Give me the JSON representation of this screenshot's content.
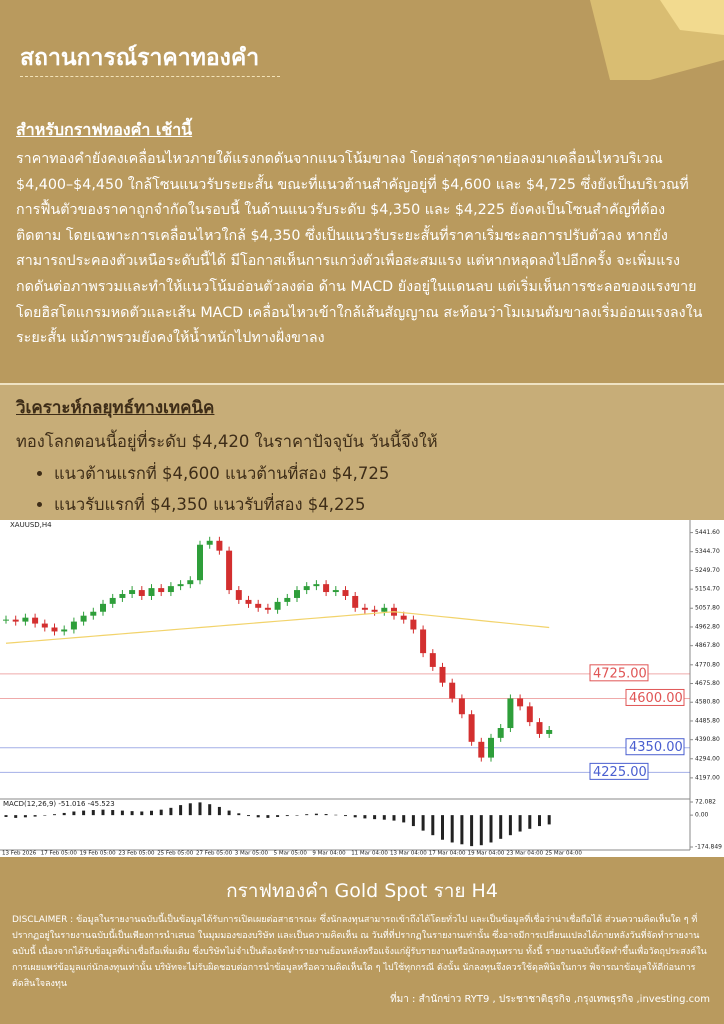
{
  "header": {
    "title": "สถานการณ์ราคาทองคำ"
  },
  "section1": {
    "title": "สำหรับกราฟทองคำ เช้านี้",
    "body": "ราคาทองคำยังคงเคลื่อนไหวภายใต้แรงกดดันจากแนวโน้มขาลง โดยล่าสุดราคาย่อลงมาเคลื่อนไหวบริเวณ $4,400–$4,450 ใกล้โซนแนวรับระยะสั้น ขณะที่แนวต้านสำคัญอยู่ที่ $4,600 และ $4,725 ซึ่งยังเป็นบริเวณที่การฟื้นตัวของราคาถูกจำกัดในรอบนี้ ในด้านแนวรับระดับ $4,350 และ $4,225 ยังคงเป็นโซนสำคัญที่ต้องติดตาม โดยเฉพาะการเคลื่อนไหวใกล้ $4,350 ซึ่งเป็นแนวรับระยะสั้นที่ราคาเริ่มชะลอการปรับตัวลง หากยังสามารถประคองตัวเหนือระดับนี้ได้ มีโอกาสเห็นการแกว่งตัวเพื่อสะสมแรง แต่หากหลุดลงไปอีกครั้ง จะเพิ่มแรงกดดันต่อภาพรวมและทำให้แนวโน้มอ่อนตัวลงต่อ ด้าน MACD ยังอยู่ในแดนลบ แต่เริ่มเห็นการชะลอของแรงขาย โดยฮิสโตแกรมหดตัวและเส้น MACD เคลื่อนไหวเข้าใกล้เส้นสัญญาณ สะท้อนว่าโมเมนตัมขาลงเริ่มอ่อนแรงลงในระยะสั้น แม้ภาพรวมยังคงให้น้ำหนักไปทางฝั่งขาลง"
  },
  "section2": {
    "title": "วิเคราะห์กลยุทธ์ทางเทคนิค",
    "intro": "ทองโลกตอนนี้อยู่ที่ระดับ $4,420 ในราคาปัจจุบัน วันนี้จึงให้",
    "bullets": [
      "แนวต้านแรกที่ $4,600 แนวต้านที่สอง $4,725",
      "แนวรับแรกที่ $4,350 แนวรับที่สอง $4,225"
    ]
  },
  "chart_data": {
    "type": "candlestick",
    "title": "XAUUSD,H4",
    "categories": [
      "13 Feb 2026",
      null,
      null,
      null,
      "17 Feb 05:00",
      null,
      null,
      null,
      "19 Feb 05:00",
      null,
      null,
      null,
      "23 Feb 05:00",
      null,
      null,
      null,
      "25 Feb 05:00",
      null,
      null,
      null,
      "27 Feb 05:00",
      null,
      null,
      null,
      "3 Mar 05:00",
      null,
      null,
      null,
      "5 Mar 05:00",
      null,
      null,
      null,
      "9 Mar 04:00",
      null,
      null,
      null,
      "11 Mar 04:00",
      null,
      null,
      null,
      "13 Mar 04:00",
      null,
      null,
      null,
      "17 Mar 04:00",
      null,
      null,
      null,
      "19 Mar 04:00",
      null,
      null,
      null,
      "23 Mar 04:00",
      null,
      null,
      null,
      "25 Mar 04:00"
    ],
    "series": [
      {
        "name": "Close",
        "colors": {
          "up": "#2e9e3a",
          "down": "#d32f2f"
        },
        "values": [
          5000,
          4990,
          5010,
          4980,
          4960,
          4940,
          4950,
          4990,
          5020,
          5040,
          5080,
          5110,
          5130,
          5150,
          5120,
          5160,
          5140,
          5170,
          5180,
          5200,
          5380,
          5400,
          5350,
          5150,
          5100,
          5080,
          5060,
          5050,
          5090,
          5110,
          5150,
          5170,
          5180,
          5140,
          5150,
          5120,
          5060,
          5050,
          5040,
          5060,
          5020,
          5000,
          4950,
          4830,
          4760,
          4680,
          4600,
          4520,
          4380,
          4300,
          4400,
          4450,
          4600,
          4560,
          4480,
          4420,
          4440
        ]
      },
      {
        "name": "MA",
        "color": "#f2d36b",
        "values": [
          4880,
          4884,
          4888,
          4892,
          4896,
          4900,
          4904,
          4908,
          4912,
          4916,
          4920,
          4924,
          4928,
          4932,
          4936,
          4940,
          4944,
          4948,
          4952,
          4956,
          4960,
          4964,
          4968,
          4972,
          4976,
          4980,
          4984,
          4988,
          4992,
          4996,
          5000,
          5004,
          5008,
          5012,
          5016,
          5020,
          5024,
          5028,
          5032,
          5036,
          5040,
          5035,
          5030,
          5025,
          5020,
          5015,
          5010,
          5005,
          5000,
          4995,
          4990,
          4985,
          4980,
          4975,
          4970,
          4965,
          4960
        ]
      }
    ],
    "ylim": [
      4100,
      5470
    ],
    "yticks": [
      {
        "value": 5441.6,
        "label": "5441.60"
      },
      {
        "value": 5344.7,
        "label": "5344.70"
      },
      {
        "value": 5249.7,
        "label": "5249.70"
      },
      {
        "value": 5154.7,
        "label": "5154.70"
      },
      {
        "value": 5057.8,
        "label": "5057.80"
      },
      {
        "value": 4962.8,
        "label": "4962.80"
      },
      {
        "value": 4867.8,
        "label": "4867.80"
      },
      {
        "value": 4770.8,
        "label": "4770.80"
      },
      {
        "value": 4675.8,
        "label": "4675.80"
      },
      {
        "value": 4580.8,
        "label": "4580.80"
      },
      {
        "value": 4485.8,
        "label": "4485.80"
      },
      {
        "value": 4390.8,
        "label": "4390.80"
      },
      {
        "value": 4294,
        "label": "4294.00"
      },
      {
        "value": 4197,
        "label": "4197.00"
      }
    ],
    "levels": [
      {
        "value": 4725,
        "label": "4725.00",
        "color": "#e05555"
      },
      {
        "value": 4600,
        "label": "4600.00",
        "color": "#e05555"
      },
      {
        "value": 4350,
        "label": "4350.00",
        "color": "#4a5fd0"
      },
      {
        "value": 4225,
        "label": "4225.00",
        "color": "#4a5fd0"
      }
    ],
    "macd": {
      "label": "MACD(12,26,9) -51.016 -45.523",
      "color": "#222222",
      "ylim": [
        -174.849,
        72.082
      ],
      "yticks": [
        {
          "value": 72.082,
          "label": "72.082"
        },
        {
          "value": 0,
          "label": "0.00"
        },
        {
          "value": -174.849,
          "label": "-174.849"
        }
      ],
      "values": [
        -10,
        -15,
        -12,
        -8,
        -2,
        5,
        12,
        20,
        25,
        28,
        30,
        28,
        25,
        22,
        20,
        24,
        30,
        40,
        55,
        65,
        70,
        60,
        45,
        25,
        10,
        -5,
        -12,
        -15,
        -10,
        -5,
        0,
        5,
        8,
        6,
        2,
        -5,
        -12,
        -18,
        -22,
        -25,
        -30,
        -40,
        -60,
        -85,
        -110,
        -135,
        -150,
        -160,
        -170,
        -165,
        -150,
        -130,
        -110,
        -90,
        -75,
        -60,
        -51
      ]
    }
  },
  "caption": "กราฟทองคำ Gold Spot ราย H4",
  "disclaimer": "DISCLAIMER : ข้อมูลในรายงานฉบับนี้เป็นข้อมูลได้รับการเปิดเผยต่อสาธารณะ ซึ่งนักลงทุนสามารถเข้าถึงได้โดยทั่วไป และเป็นข้อมูลที่เชื่อว่าน่าเชื่อถือได้ ส่วนความคิดเห็นใด ๆ ที่ปรากฏอยู่ในรายงานฉบับนี้เป็นเพียงการนำเสนอ ในมุมมองของบริษัท และเป็นความคิดเห็น ณ วันที่ที่ปรากฏในรายงานเท่านั้น ซึ่งอาจมีการเปลี่ยนแปลงได้ภายหลังวันที่จัดทำรายงานฉบับนี้ เนื่องจากได้รับข้อมูลที่น่าเชื่อถือเพิ่มเติม ซึ่งบริษัทไม่จำเป็นต้องจัดทำรายงานย้อนหลังหรือแจ้งแก่ผู้รับรายงานหรือนักลงทุนทราบ ทั้งนี้ รายงานฉบับนี้จัดทำขึ้นเพื่อวัตถุประสงค์ในการเผยแพร่ข้อมูลแก่นักลงทุนเท่านั้น บริษัทจะไม่รับผิดชอบต่อการนำข้อมูลหรือความคิดเห็นใด ๆ ไปใช้ทุกกรณี ดังนั้น นักลงทุนจึงควรใช้ดุลพินิจในการ พิจารณาข้อมูลให้ดีก่อนการตัดสินใจลงทุน",
  "source": "ที่มา : สำนักข่าว RYT9 , ประชาชาติธุรกิจ ,กรุงเทพธุรกิจ ,investing.com"
}
